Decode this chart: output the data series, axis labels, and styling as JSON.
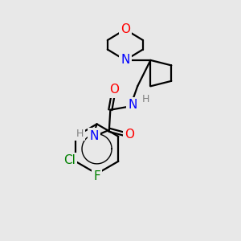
{
  "background_color": "#e8e8e8",
  "bond_color": "#000000",
  "atom_colors": {
    "O": "#ff0000",
    "N": "#0000ff",
    "Cl": "#008000",
    "F": "#008000",
    "H": "#808080",
    "C": "#000000"
  },
  "font_size_atoms": 11,
  "font_size_small": 9,
  "figsize": [
    3.0,
    3.0
  ],
  "dpi": 100,
  "lw": 1.6
}
